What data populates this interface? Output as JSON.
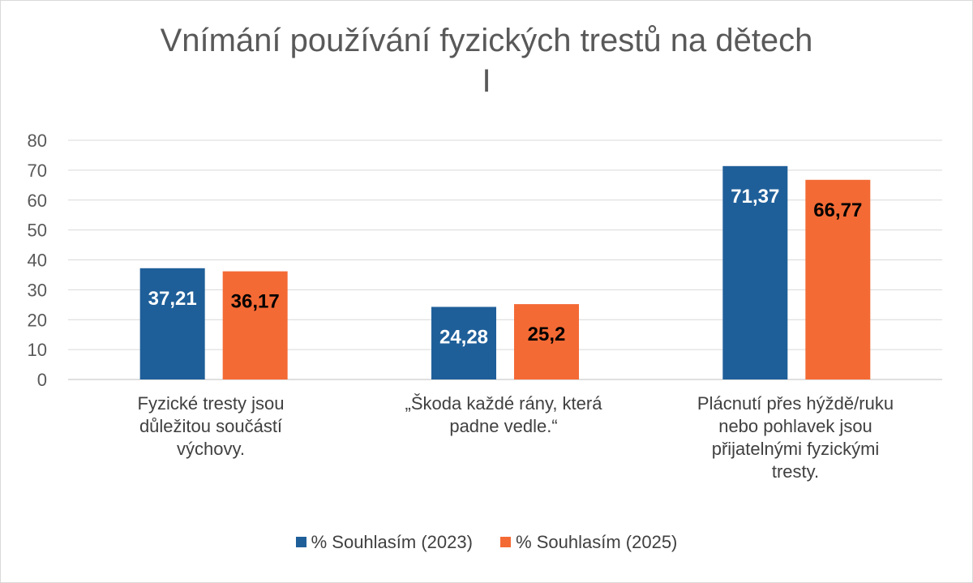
{
  "chart_data": {
    "type": "bar",
    "title": "Vnímání používání fyzických trestů na dětech I",
    "title_lines": [
      "Vnímání používání fyzických trestů na dětech",
      "I"
    ],
    "categories": [
      "Fyzické tresty jsou důležitou součástí výchovy.",
      "„Škoda každé rány, která padne vedle.“",
      "Plácnutí přes hýždě/ruku nebo pohlavek jsou přijatelnými fyzickými tresty."
    ],
    "category_lines": [
      [
        "Fyzické tresty jsou",
        "důležitou součástí",
        "výchovy."
      ],
      [
        "„Škoda každé rány, která",
        "padne vedle.“"
      ],
      [
        "Plácnutí přes hýždě/ruku",
        "nebo pohlavek jsou",
        "přijatelnými fyzickými",
        "tresty."
      ]
    ],
    "series": [
      {
        "name": "% Souhlasím (2023)",
        "values": [
          37.21,
          24.28,
          71.37
        ],
        "labels": [
          "37,21",
          "24,28",
          "71,37"
        ],
        "color": "#1f5f99",
        "label_color": "#ffffff"
      },
      {
        "name": "% Souhlasím (2025)",
        "values": [
          36.17,
          25.2,
          66.77
        ],
        "labels": [
          "36,17",
          "25,2",
          "66,77"
        ],
        "color": "#f46a35",
        "label_color": "#000000"
      }
    ],
    "ylim": [
      0,
      80
    ],
    "yticks": [
      0,
      10,
      20,
      30,
      40,
      50,
      60,
      70,
      80
    ],
    "grid": true,
    "legend_position": "bottom"
  }
}
